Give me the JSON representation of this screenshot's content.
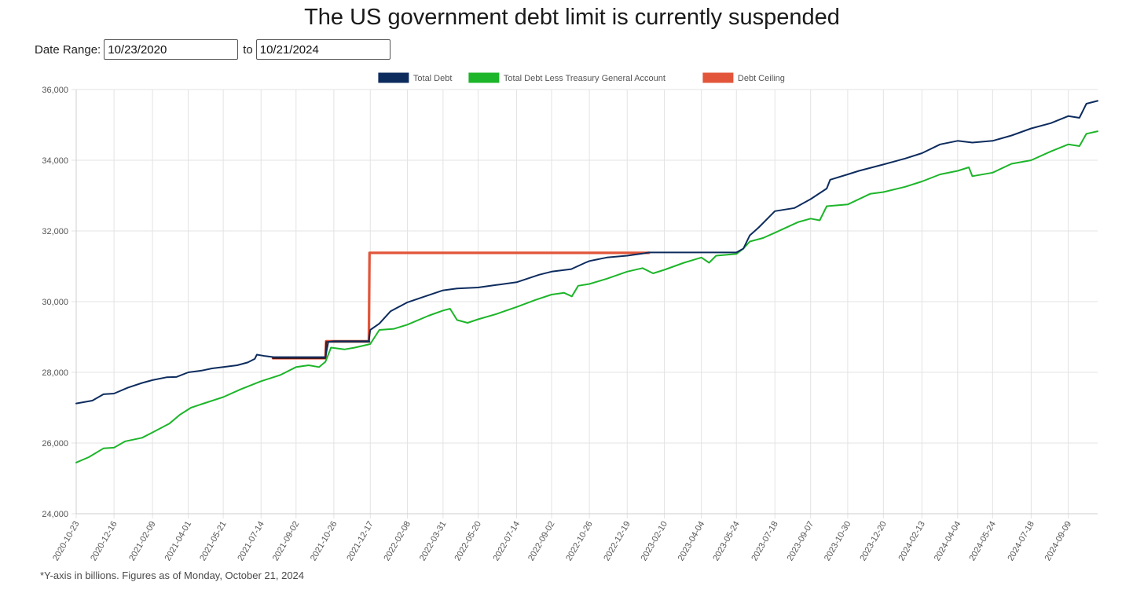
{
  "title": "The US government debt limit is currently suspended",
  "date_range": {
    "label": "Date Range:",
    "start": "10/23/2020",
    "separator": "to",
    "end": "10/21/2024"
  },
  "footnote": "*Y-axis in billions. Figures as of Monday, October 21, 2024",
  "chart_data": {
    "type": "line",
    "title": "",
    "xlabel": "",
    "ylabel": "",
    "ylim": [
      24000,
      36000
    ],
    "y_ticks": [
      24000,
      26000,
      28000,
      30000,
      32000,
      34000,
      36000
    ],
    "x_range": [
      "2020-10-23",
      "2024-10-21"
    ],
    "x_ticks": [
      "2020-10-23",
      "2020-12-16",
      "2021-02-09",
      "2021-04-01",
      "2021-05-21",
      "2021-07-14",
      "2021-09-02",
      "2021-10-26",
      "2021-12-17",
      "2022-02-08",
      "2022-03-31",
      "2022-05-20",
      "2022-07-14",
      "2022-09-02",
      "2022-10-26",
      "2022-12-19",
      "2023-02-10",
      "2023-04-04",
      "2023-05-24",
      "2023-07-18",
      "2023-09-07",
      "2023-10-30",
      "2023-12-20",
      "2024-02-13",
      "2024-04-04",
      "2024-05-24",
      "2024-07-18",
      "2024-09-09"
    ],
    "grid": true,
    "legend_position": "top",
    "series": [
      {
        "name": "Total Debt",
        "color": "#0d2c5e",
        "points": [
          [
            "2020-10-23",
            27120
          ],
          [
            "2020-11-15",
            27200
          ],
          [
            "2020-12-01",
            27380
          ],
          [
            "2020-12-16",
            27400
          ],
          [
            "2021-01-05",
            27570
          ],
          [
            "2021-01-25",
            27700
          ],
          [
            "2021-02-09",
            27780
          ],
          [
            "2021-03-01",
            27860
          ],
          [
            "2021-03-15",
            27870
          ],
          [
            "2021-04-01",
            28000
          ],
          [
            "2021-04-20",
            28050
          ],
          [
            "2021-05-05",
            28110
          ],
          [
            "2021-05-21",
            28150
          ],
          [
            "2021-06-10",
            28200
          ],
          [
            "2021-06-25",
            28280
          ],
          [
            "2021-07-05",
            28380
          ],
          [
            "2021-07-08",
            28500
          ],
          [
            "2021-07-20",
            28460
          ],
          [
            "2021-08-01",
            28430
          ],
          [
            "2021-08-20",
            28430
          ],
          [
            "2021-09-02",
            28430
          ],
          [
            "2021-09-20",
            28430
          ],
          [
            "2021-10-14",
            28430
          ],
          [
            "2021-10-18",
            28860
          ],
          [
            "2021-10-26",
            28880
          ],
          [
            "2021-11-15",
            28880
          ],
          [
            "2021-12-15",
            28880
          ],
          [
            "2021-12-17",
            29200
          ],
          [
            "2021-12-30",
            29380
          ],
          [
            "2022-01-15",
            29730
          ],
          [
            "2022-02-08",
            29980
          ],
          [
            "2022-03-01",
            30120
          ],
          [
            "2022-03-31",
            30320
          ],
          [
            "2022-04-20",
            30370
          ],
          [
            "2022-05-20",
            30400
          ],
          [
            "2022-06-15",
            30470
          ],
          [
            "2022-07-14",
            30550
          ],
          [
            "2022-08-15",
            30760
          ],
          [
            "2022-09-02",
            30850
          ],
          [
            "2022-09-30",
            30920
          ],
          [
            "2022-10-20",
            31100
          ],
          [
            "2022-10-26",
            31150
          ],
          [
            "2022-11-20",
            31250
          ],
          [
            "2022-12-19",
            31300
          ],
          [
            "2023-01-10",
            31360
          ],
          [
            "2023-01-19",
            31390
          ],
          [
            "2023-02-10",
            31390
          ],
          [
            "2023-04-04",
            31390
          ],
          [
            "2023-05-24",
            31390
          ],
          [
            "2023-06-03",
            31500
          ],
          [
            "2023-06-12",
            31870
          ],
          [
            "2023-06-25",
            32100
          ],
          [
            "2023-07-18",
            32560
          ],
          [
            "2023-08-15",
            32650
          ],
          [
            "2023-09-07",
            32900
          ],
          [
            "2023-09-30",
            33200
          ],
          [
            "2023-10-05",
            33450
          ],
          [
            "2023-10-30",
            33600
          ],
          [
            "2023-11-15",
            33700
          ],
          [
            "2023-12-20",
            33880
          ],
          [
            "2024-01-20",
            34050
          ],
          [
            "2024-02-13",
            34200
          ],
          [
            "2024-03-10",
            34450
          ],
          [
            "2024-04-04",
            34550
          ],
          [
            "2024-04-25",
            34500
          ],
          [
            "2024-05-24",
            34550
          ],
          [
            "2024-06-20",
            34700
          ],
          [
            "2024-07-18",
            34900
          ],
          [
            "2024-08-15",
            35050
          ],
          [
            "2024-09-09",
            35250
          ],
          [
            "2024-09-25",
            35200
          ],
          [
            "2024-10-05",
            35600
          ],
          [
            "2024-10-21",
            35680
          ]
        ]
      },
      {
        "name": "Total Debt Less Treasury General Account",
        "color": "#1db52a",
        "points": [
          [
            "2020-10-23",
            25450
          ],
          [
            "2020-11-10",
            25600
          ],
          [
            "2020-12-01",
            25850
          ],
          [
            "2020-12-16",
            25870
          ],
          [
            "2021-01-01",
            26050
          ],
          [
            "2021-01-25",
            26150
          ],
          [
            "2021-02-09",
            26300
          ],
          [
            "2021-03-05",
            26550
          ],
          [
            "2021-03-20",
            26800
          ],
          [
            "2021-04-05",
            27000
          ],
          [
            "2021-04-20",
            27100
          ],
          [
            "2021-05-21",
            27300
          ],
          [
            "2021-06-15",
            27520
          ],
          [
            "2021-07-14",
            27750
          ],
          [
            "2021-08-10",
            27920
          ],
          [
            "2021-09-02",
            28150
          ],
          [
            "2021-09-20",
            28200
          ],
          [
            "2021-10-05",
            28150
          ],
          [
            "2021-10-14",
            28300
          ],
          [
            "2021-10-22",
            28700
          ],
          [
            "2021-11-10",
            28650
          ],
          [
            "2021-11-25",
            28700
          ],
          [
            "2021-12-17",
            28800
          ],
          [
            "2021-12-30",
            29200
          ],
          [
            "2022-01-20",
            29230
          ],
          [
            "2022-02-08",
            29350
          ],
          [
            "2022-03-10",
            29600
          ],
          [
            "2022-03-31",
            29750
          ],
          [
            "2022-04-10",
            29800
          ],
          [
            "2022-04-20",
            29480
          ],
          [
            "2022-05-05",
            29400
          ],
          [
            "2022-05-20",
            29500
          ],
          [
            "2022-06-15",
            29650
          ],
          [
            "2022-07-14",
            29850
          ],
          [
            "2022-08-10",
            30050
          ],
          [
            "2022-09-02",
            30200
          ],
          [
            "2022-09-20",
            30250
          ],
          [
            "2022-10-01",
            30150
          ],
          [
            "2022-10-10",
            30450
          ],
          [
            "2022-10-26",
            30500
          ],
          [
            "2022-11-20",
            30650
          ],
          [
            "2022-12-19",
            30850
          ],
          [
            "2023-01-10",
            30950
          ],
          [
            "2023-01-25",
            30800
          ],
          [
            "2023-02-10",
            30900
          ],
          [
            "2023-03-10",
            31100
          ],
          [
            "2023-04-04",
            31250
          ],
          [
            "2023-04-15",
            31100
          ],
          [
            "2023-04-25",
            31300
          ],
          [
            "2023-05-24",
            31350
          ],
          [
            "2023-06-03",
            31500
          ],
          [
            "2023-06-12",
            31700
          ],
          [
            "2023-07-01",
            31800
          ],
          [
            "2023-07-18",
            31950
          ],
          [
            "2023-08-20",
            32250
          ],
          [
            "2023-09-07",
            32350
          ],
          [
            "2023-09-20",
            32300
          ],
          [
            "2023-09-30",
            32700
          ],
          [
            "2023-10-30",
            32750
          ],
          [
            "2023-12-01",
            33050
          ],
          [
            "2023-12-20",
            33100
          ],
          [
            "2024-01-20",
            33250
          ],
          [
            "2024-02-13",
            33400
          ],
          [
            "2024-03-10",
            33600
          ],
          [
            "2024-04-04",
            33700
          ],
          [
            "2024-04-20",
            33800
          ],
          [
            "2024-04-25",
            33550
          ],
          [
            "2024-05-24",
            33650
          ],
          [
            "2024-06-20",
            33900
          ],
          [
            "2024-07-18",
            34000
          ],
          [
            "2024-08-15",
            34250
          ],
          [
            "2024-09-09",
            34450
          ],
          [
            "2024-09-25",
            34400
          ],
          [
            "2024-10-05",
            34750
          ],
          [
            "2024-10-21",
            34820
          ]
        ]
      },
      {
        "name": "Debt Ceiling",
        "color": "#e2553a",
        "points": [
          [
            "2021-07-31",
            28400
          ],
          [
            "2021-10-14",
            28400
          ],
          [
            "2021-10-15",
            28880
          ],
          [
            "2021-12-15",
            28880
          ],
          [
            "2021-12-16",
            31380
          ],
          [
            "2023-01-19",
            31380
          ]
        ]
      },
      {
        "name": "",
        "color": "#4a1a1a",
        "points": [
          [
            "2021-07-31",
            28400
          ],
          [
            "2021-10-14",
            28400
          ],
          [
            "2021-10-15",
            28860
          ],
          [
            "2021-12-15",
            28860
          ],
          [
            "2021-12-16",
            28860
          ]
        ]
      }
    ]
  }
}
